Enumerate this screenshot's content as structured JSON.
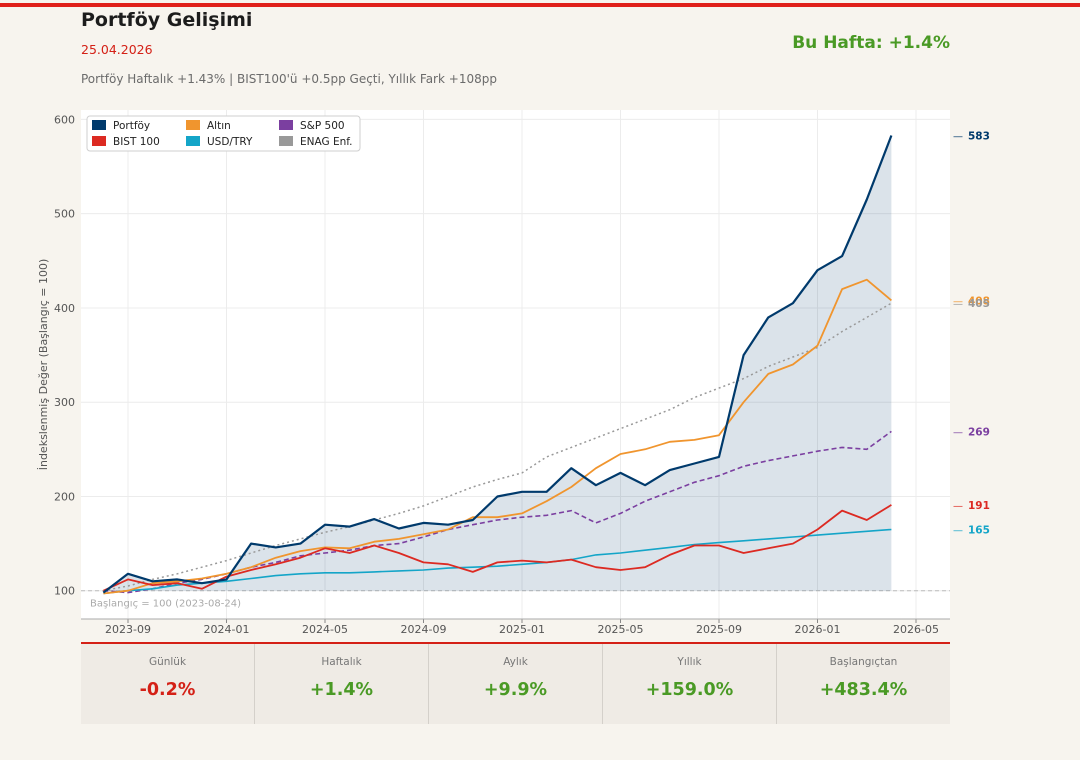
{
  "header": {
    "title": "Portföy Gelişimi",
    "date": "25.04.2026",
    "subtitle": "Portföy Haftalık +1.43% | BIST100'ü +0.5pp Geçti, Yıllık Fark +108pp",
    "week_label": "Bu Hafta: +1.4%"
  },
  "chart_data": {
    "type": "line",
    "ylabel": "İndekslenmiş Değer (Başlangıç = 100)",
    "xlabel": "",
    "ylim": [
      70,
      610
    ],
    "yticks": [
      100,
      200,
      300,
      400,
      500,
      600
    ],
    "xticks": [
      "2023-09",
      "2024-01",
      "2024-05",
      "2024-09",
      "2025-01",
      "2025-05",
      "2025-09",
      "2026-01",
      "2026-05"
    ],
    "baseline_note": "Başlangıç = 100  (2023-08-24)",
    "legend_position": "top-left",
    "x": [
      "2023-08",
      "2023-09",
      "2023-10",
      "2023-11",
      "2023-12",
      "2024-01",
      "2024-02",
      "2024-03",
      "2024-04",
      "2024-05",
      "2024-06",
      "2024-07",
      "2024-08",
      "2024-09",
      "2024-10",
      "2024-11",
      "2024-12",
      "2025-01",
      "2025-02",
      "2025-03",
      "2025-04",
      "2025-05",
      "2025-06",
      "2025-07",
      "2025-08",
      "2025-09",
      "2025-10",
      "2025-11",
      "2025-12",
      "2026-01",
      "2026-02",
      "2026-03",
      "2026-04"
    ],
    "series": [
      {
        "name": "Portföy",
        "color": "#003a6c",
        "dash": "",
        "width": 2.2,
        "values": [
          98,
          118,
          110,
          112,
          108,
          112,
          150,
          146,
          150,
          170,
          168,
          176,
          166,
          172,
          170,
          175,
          200,
          205,
          205,
          230,
          212,
          225,
          212,
          228,
          235,
          242,
          350,
          390,
          405,
          440,
          455,
          515,
          583
        ]
      },
      {
        "name": "BIST 100",
        "color": "#dc2a22",
        "dash": "",
        "width": 1.8,
        "values": [
          100,
          112,
          106,
          108,
          102,
          115,
          122,
          128,
          135,
          145,
          140,
          148,
          140,
          130,
          128,
          120,
          130,
          132,
          130,
          133,
          125,
          122,
          125,
          138,
          148,
          148,
          140,
          145,
          150,
          165,
          185,
          175,
          191
        ]
      },
      {
        "name": "Altın",
        "color": "#f0952e",
        "dash": "",
        "width": 1.8,
        "values": [
          97,
          100,
          108,
          110,
          113,
          118,
          125,
          135,
          142,
          146,
          145,
          152,
          155,
          160,
          165,
          178,
          178,
          182,
          195,
          210,
          230,
          245,
          250,
          258,
          260,
          265,
          300,
          330,
          340,
          360,
          420,
          430,
          408
        ]
      },
      {
        "name": "USD/TRY",
        "color": "#14a5c8",
        "dash": "",
        "width": 1.6,
        "values": [
          97,
          100,
          102,
          106,
          108,
          110,
          113,
          116,
          118,
          119,
          119,
          120,
          121,
          122,
          124,
          125,
          126,
          128,
          130,
          133,
          138,
          140,
          143,
          146,
          149,
          151,
          153,
          155,
          157,
          159,
          161,
          163,
          165
        ]
      },
      {
        "name": "S&P 500",
        "color": "#7b3fa0",
        "dash": "5,3",
        "width": 1.6,
        "values": [
          100,
          98,
          102,
          108,
          112,
          118,
          125,
          130,
          137,
          140,
          143,
          148,
          150,
          157,
          165,
          170,
          175,
          178,
          180,
          185,
          172,
          182,
          195,
          205,
          215,
          222,
          232,
          238,
          243,
          248,
          252,
          250,
          269
        ]
      },
      {
        "name": "ENAG Enf.",
        "color": "#999999",
        "dash": "2,3",
        "width": 1.5,
        "values": [
          100,
          105,
          112,
          118,
          125,
          132,
          140,
          148,
          155,
          162,
          168,
          175,
          182,
          190,
          200,
          210,
          218,
          225,
          242,
          252,
          262,
          272,
          282,
          292,
          305,
          315,
          325,
          338,
          348,
          358,
          375,
          390,
          405
        ]
      }
    ],
    "end_labels": [
      {
        "text": "583",
        "value": 583,
        "color": "#003a6c"
      },
      {
        "text": "408",
        "value": 408,
        "color": "#f0952e"
      },
      {
        "text": "405",
        "value": 405,
        "color": "#999999"
      },
      {
        "text": "269",
        "value": 269,
        "color": "#7b3fa0"
      },
      {
        "text": "191",
        "value": 191,
        "color": "#dc2a22"
      },
      {
        "text": "165",
        "value": 165,
        "color": "#14a5c8"
      }
    ]
  },
  "stats": [
    {
      "label": "Günlük",
      "value": "-0.2%",
      "color": "#d42016"
    },
    {
      "label": "Haftalık",
      "value": "+1.4%",
      "color": "#4a9a25"
    },
    {
      "label": "Aylık",
      "value": "+9.9%",
      "color": "#4a9a25"
    },
    {
      "label": "Yıllık",
      "value": "+159.0%",
      "color": "#4a9a25"
    },
    {
      "label": "Başlangıçtan",
      "value": "+483.4%",
      "color": "#4a9a25"
    }
  ]
}
